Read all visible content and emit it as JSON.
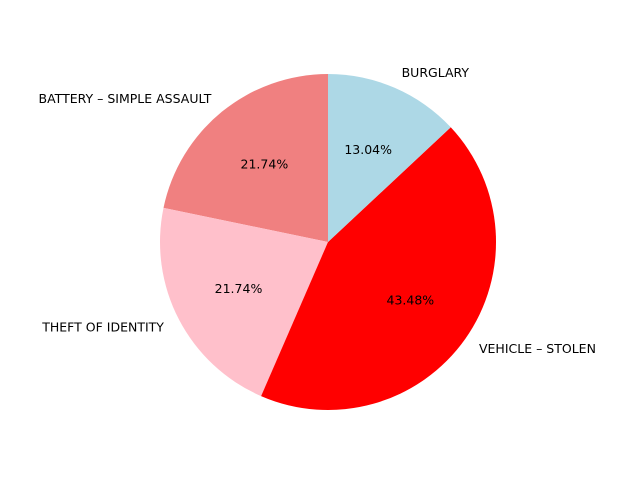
{
  "chart_data": {
    "type": "pie",
    "start_angle_deg": 90,
    "direction": "counterclockwise",
    "slices": [
      {
        "label": "BATTERY – SIMPLE ASSAULT",
        "value": 21.74,
        "pct_label": "21.74%",
        "color": "#f08080"
      },
      {
        "label": "THEFT OF IDENTITY",
        "value": 21.74,
        "pct_label": "21.74%",
        "color": "#ffc0cb"
      },
      {
        "label": "VEHICLE – STOLEN",
        "value": 43.48,
        "pct_label": "43.48%",
        "color": "#ff0000"
      },
      {
        "label": "BURGLARY",
        "value": 13.04,
        "pct_label": "13.04%",
        "color": "#add8e6"
      }
    ]
  }
}
